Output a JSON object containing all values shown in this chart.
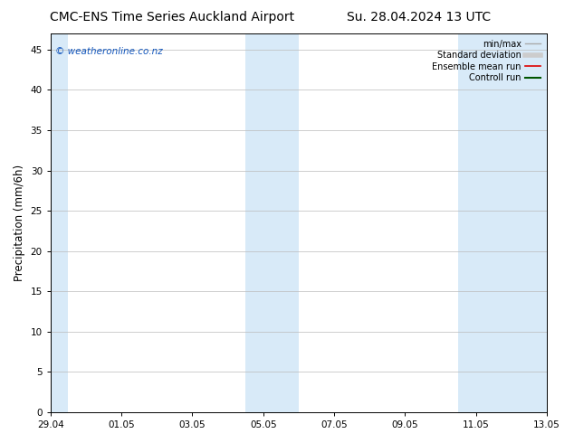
{
  "title_left": "CMC-ENS Time Series Auckland Airport",
  "title_right": "Su. 28.04.2024 13 UTC",
  "ylabel": "Precipitation (mm/6h)",
  "watermark": "© weatheronline.co.nz",
  "watermark_color": "#1155bb",
  "ylim": [
    0,
    47
  ],
  "yticks": [
    0,
    5,
    10,
    15,
    20,
    25,
    30,
    35,
    40,
    45
  ],
  "xtick_labels": [
    "29.04",
    "01.05",
    "03.05",
    "05.05",
    "07.05",
    "09.05",
    "11.05",
    "13.05"
  ],
  "x_positions": [
    0,
    2,
    4,
    6,
    8,
    10,
    12,
    14
  ],
  "xlim": [
    0,
    14
  ],
  "shaded_bands": [
    {
      "x_start": -0.15,
      "x_end": 0.5
    },
    {
      "x_start": 5.5,
      "x_end": 7.0
    },
    {
      "x_start": 11.5,
      "x_end": 14.15
    }
  ],
  "band_color": "#d8eaf8",
  "band_alpha": 1.0,
  "legend_entries": [
    {
      "label": "min/max",
      "color": "#aaaaaa",
      "lw": 1.0
    },
    {
      "label": "Standard deviation",
      "color": "#cccccc",
      "lw": 4.0
    },
    {
      "label": "Ensemble mean run",
      "color": "#dd0000",
      "lw": 1.2
    },
    {
      "label": "Controll run",
      "color": "#005500",
      "lw": 1.5
    }
  ],
  "bg_color": "#ffffff",
  "plot_bg_color": "#ffffff",
  "grid_color": "#bbbbbb",
  "title_fontsize": 10,
  "tick_fontsize": 7.5,
  "label_fontsize": 8.5,
  "watermark_fontsize": 7.5,
  "legend_fontsize": 7.0
}
